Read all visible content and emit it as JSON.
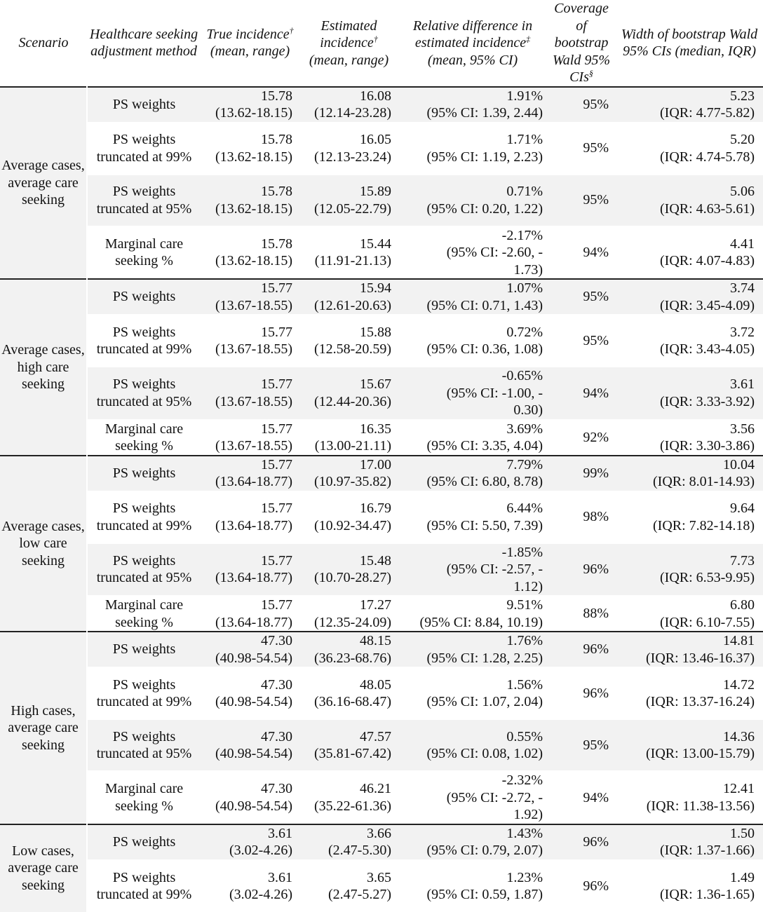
{
  "headers": {
    "scenario": "Scenario",
    "method": "Healthcare seeking adjustment method",
    "true_inc": "True incidence",
    "true_inc_sup": "†",
    "true_inc_tail": "(mean, range)",
    "est_inc": "Estimated incidence",
    "est_inc_sup": "†",
    "est_inc_tail": "(mean, range)",
    "rel": "Relative difference in estimated incidence",
    "rel_sup": "‡",
    "rel_tail": "(mean, 95% CI)",
    "cov": "Coverage of bootstrap Wald 95% CIs",
    "cov_sup": "§",
    "wid": "Width of bootstrap Wald 95% CIs (median, IQR)"
  },
  "groups": [
    {
      "scenario": "Average cases, average care seeking",
      "rows": [
        {
          "method": "PS weights",
          "true": "15.78\n(13.62-18.15)",
          "est": "16.08\n(12.14-23.28)",
          "rel": "1.91%\n(95% CI: 1.39, 2.44)",
          "cov": "95%",
          "wid": "5.23\n(IQR: 4.77-5.82)"
        },
        {
          "method": "PS weights truncated at 99%",
          "true": "15.78\n(13.62-18.15)",
          "est": "16.05\n(12.13-23.24)",
          "rel": "1.71%\n(95% CI: 1.19, 2.23)",
          "cov": "95%",
          "wid": "5.20\n(IQR: 4.74-5.78)"
        },
        {
          "method": "PS weights truncated at 95%",
          "true": "15.78\n(13.62-18.15)",
          "est": "15.89\n(12.05-22.79)",
          "rel": "0.71%\n(95% CI: 0.20, 1.22)",
          "cov": "95%",
          "wid": "5.06\n(IQR: 4.63-5.61)"
        },
        {
          "method": "Marginal care seeking %",
          "true": "15.78\n(13.62-18.15)",
          "est": "15.44\n(11.91-21.13)",
          "rel": "-2.17%\n(95% CI: -2.60, -\n1.73)",
          "cov": "94%",
          "wid": "4.41\n(IQR: 4.07-4.83)"
        }
      ]
    },
    {
      "scenario": "Average cases, high care seeking",
      "rows": [
        {
          "method": "PS weights",
          "true": "15.77\n(13.67-18.55)",
          "est": "15.94\n(12.61-20.63)",
          "rel": "1.07%\n(95% CI: 0.71, 1.43)",
          "cov": "95%",
          "wid": "3.74\n(IQR: 3.45-4.09)"
        },
        {
          "method": "PS weights truncated at 99%",
          "true": "15.77\n(13.67-18.55)",
          "est": "15.88\n(12.58-20.59)",
          "rel": "0.72%\n(95% CI: 0.36, 1.08)",
          "cov": "95%",
          "wid": "3.72\n(IQR: 3.43-4.05)"
        },
        {
          "method": "PS weights truncated at 95%",
          "true": "15.77\n(13.67-18.55)",
          "est": "15.67\n(12.44-20.36)",
          "rel": "-0.65%\n(95% CI: -1.00, -\n0.30)",
          "cov": "94%",
          "wid": "3.61\n(IQR: 3.33-3.92)"
        },
        {
          "method": "Marginal care seeking %",
          "true": "15.77\n(13.67-18.55)",
          "est": "16.35\n(13.00-21.11)",
          "rel": "3.69%\n(95% CI: 3.35, 4.04)",
          "cov": "92%",
          "wid": "3.56\n(IQR: 3.30-3.86)"
        }
      ]
    },
    {
      "scenario": "Average cases, low care seeking",
      "rows": [
        {
          "method": "PS weights",
          "true": "15.77\n(13.64-18.77)",
          "est": "17.00\n(10.97-35.82)",
          "rel": "7.79%\n(95% CI: 6.80, 8.78)",
          "cov": "99%",
          "wid": "10.04\n(IQR: 8.01-14.93)"
        },
        {
          "method": "PS weights truncated at 99%",
          "true": "15.77\n(13.64-18.77)",
          "est": "16.79\n(10.92-34.47)",
          "rel": "6.44%\n(95% CI: 5.50, 7.39)",
          "cov": "98%",
          "wid": "9.64\n(IQR: 7.82-14.18)"
        },
        {
          "method": "PS weights truncated at 95%",
          "true": "15.77\n(13.64-18.77)",
          "est": "15.48\n(10.70-28.27)",
          "rel": "-1.85%\n(95% CI: -2.57, -\n1.12)",
          "cov": "96%",
          "wid": "7.73\n(IQR: 6.53-9.95)"
        },
        {
          "method": "Marginal care seeking %",
          "true": "15.77\n(13.64-18.77)",
          "est": "17.27\n(12.35-24.09)",
          "rel": "9.51%\n(95% CI: 8.84, 10.19)",
          "cov": "88%",
          "wid": "6.80\n(IQR: 6.10-7.55)"
        }
      ]
    },
    {
      "scenario": "High cases, average care seeking",
      "rows": [
        {
          "method": "PS weights",
          "true": "47.30\n(40.98-54.54)",
          "est": "48.15\n(36.23-68.76)",
          "rel": "1.76%\n(95% CI: 1.28, 2.25)",
          "cov": "96%",
          "wid": "14.81\n(IQR: 13.46-16.37)"
        },
        {
          "method": "PS weights truncated at 99%",
          "true": "47.30\n(40.98-54.54)",
          "est": "48.05\n(36.16-68.47)",
          "rel": "1.56%\n(95% CI: 1.07, 2.04)",
          "cov": "96%",
          "wid": "14.72\n(IQR: 13.37-16.24)"
        },
        {
          "method": "PS weights truncated at 95%",
          "true": "47.30\n(40.98-54.54)",
          "est": "47.57\n(35.81-67.42)",
          "rel": "0.55%\n(95% CI: 0.08, 1.02)",
          "cov": "95%",
          "wid": "14.36\n(IQR: 13.00-15.79)"
        },
        {
          "method": "Marginal care seeking %",
          "true": "47.30\n(40.98-54.54)",
          "est": "46.21\n(35.22-61.36)",
          "rel": "-2.32%\n(95% CI: -2.72, -\n1.92)",
          "cov": "94%",
          "wid": "12.41\n(IQR: 11.38-13.56)"
        }
      ]
    },
    {
      "scenario": "Low cases, average care seeking",
      "rows": [
        {
          "method": "PS weights",
          "true": "3.61\n(3.02-4.26)",
          "est": "3.66\n(2.47-5.30)",
          "rel": "1.43%\n(95% CI: 0.79, 2.07)",
          "cov": "96%",
          "wid": "1.50\n(IQR: 1.37-1.66)"
        },
        {
          "method": "PS weights truncated at 99%",
          "true": "3.61\n(3.02-4.26)",
          "est": "3.65\n(2.47-5.27)",
          "rel": "1.23%\n(95% CI: 0.59, 1.87)",
          "cov": "96%",
          "wid": "1.49\n(IQR: 1.36-1.65)"
        }
      ]
    }
  ]
}
